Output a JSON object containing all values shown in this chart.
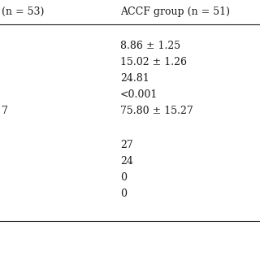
{
  "col1_header": "(n = 53)",
  "col2_header": "ACCF group (n = 51)",
  "col1_partial_value": "7",
  "col2_values_block1": [
    "8.86 ± 1.25",
    "15.02 ± 1.26",
    "24.81",
    "<0.001",
    "75.80 ± 15.27"
  ],
  "col2_values_block2": [
    "27",
    "24",
    "0",
    "0"
  ],
  "bg_color": "#ffffff",
  "text_color": "#1a1a1a",
  "font_size": 9.0
}
